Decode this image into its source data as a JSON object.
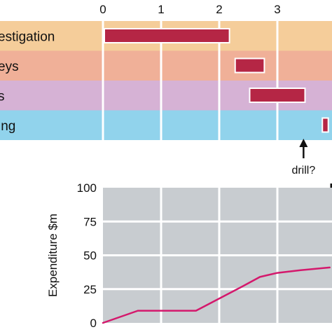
{
  "chart_data": [
    {
      "type": "gantt",
      "x_ticks": [
        "0",
        "1",
        "2",
        "3"
      ],
      "xlim": [
        0,
        3.9
      ],
      "rows": [
        {
          "label": "estigation",
          "color": "#f5cd9a",
          "start": 0.0,
          "end": 2.2
        },
        {
          "label": "eys",
          "color": "#f0b098",
          "start": 2.25,
          "end": 2.8
        },
        {
          "label": "s",
          "color": "#d6b2d5",
          "start": 2.5,
          "end": 3.5
        },
        {
          "label": "ing",
          "color": "#91d3ec",
          "start": 3.75,
          "end": 3.9
        }
      ],
      "bar_color": "#b52645",
      "annotation": {
        "text": "drill?",
        "x": 3.45
      }
    },
    {
      "type": "line",
      "ylabel": "Expenditure $m",
      "y_ticks": [
        "100",
        "75",
        "50",
        "25",
        "0"
      ],
      "ylim": [
        0,
        100
      ],
      "xlim": [
        0,
        3.9
      ],
      "plot_background": "#c8ccd0",
      "grid": true,
      "line_color": "#d4186c",
      "series": [
        {
          "x": [
            0,
            0.6,
            1.6,
            2.0,
            2.4,
            2.7,
            3.0,
            3.4,
            3.9
          ],
          "y": [
            0,
            9,
            9,
            18,
            27,
            34,
            37,
            39,
            41
          ]
        }
      ]
    }
  ]
}
